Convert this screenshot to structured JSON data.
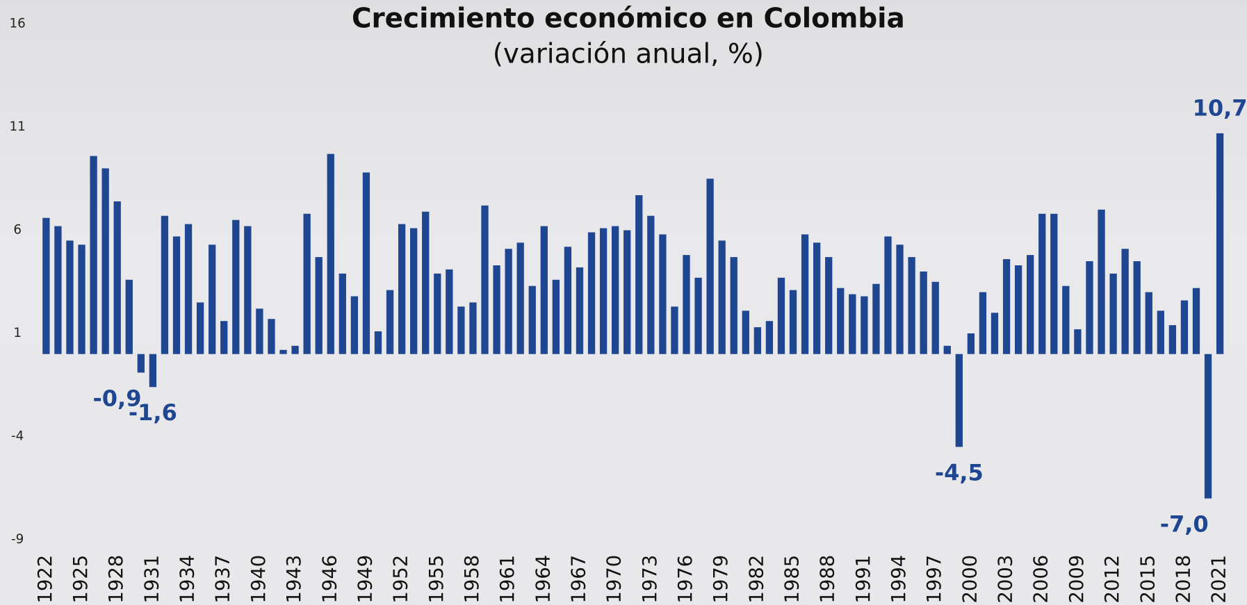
{
  "chart_data": {
    "type": "bar",
    "title": "Crecimiento económico en Colombia",
    "subtitle": "(variación anual, %)",
    "categories": [
      "1922",
      null,
      null,
      "1925",
      null,
      null,
      "1928",
      null,
      null,
      "1931",
      null,
      null,
      "1934",
      null,
      null,
      "1937",
      null,
      null,
      "1940",
      null,
      null,
      "1943",
      null,
      null,
      "1946",
      null,
      null,
      "1949",
      null,
      null,
      "1952",
      null,
      null,
      "1955",
      null,
      null,
      "1958",
      null,
      null,
      "1961",
      null,
      null,
      "1964",
      null,
      null,
      "1967",
      null,
      null,
      "1970",
      null,
      null,
      "1973",
      null,
      null,
      "1976",
      null,
      null,
      "1979",
      null,
      null,
      "1982",
      null,
      null,
      "1985",
      null,
      null,
      "1988",
      null,
      null,
      "1991",
      null,
      null,
      "1994",
      null,
      null,
      "1997",
      null,
      null,
      "2000",
      null,
      null,
      "2003",
      null,
      null,
      "2006",
      null,
      null,
      "2009",
      null,
      null,
      "2012",
      null,
      null,
      "2015",
      null,
      null,
      "2018",
      null,
      null,
      "2021"
    ],
    "values": [
      6.6,
      6.2,
      5.5,
      5.3,
      9.6,
      9.0,
      7.4,
      3.6,
      -0.9,
      -1.6,
      6.7,
      5.7,
      6.3,
      2.5,
      5.3,
      1.6,
      6.5,
      6.2,
      2.2,
      1.7,
      0.2,
      0.4,
      6.8,
      4.7,
      9.7,
      3.9,
      2.8,
      8.8,
      1.1,
      3.1,
      6.3,
      6.1,
      6.9,
      3.9,
      4.1,
      2.3,
      2.5,
      7.2,
      4.3,
      5.1,
      5.4,
      3.3,
      6.2,
      3.6,
      5.2,
      4.2,
      5.9,
      6.1,
      6.2,
      6.0,
      7.7,
      6.7,
      5.8,
      2.3,
      4.8,
      3.7,
      8.5,
      5.5,
      4.7,
      2.1,
      1.3,
      1.6,
      3.7,
      3.1,
      5.8,
      5.4,
      4.7,
      3.2,
      2.9,
      2.8,
      3.4,
      5.7,
      5.3,
      4.7,
      4.0,
      3.5,
      0.4,
      -4.5,
      1.0,
      3.0,
      2.0,
      4.6,
      4.3,
      4.8,
      6.8,
      6.8,
      3.3,
      1.2,
      4.5,
      7.0,
      3.9,
      5.1,
      4.5,
      3.0,
      2.1,
      1.4,
      2.6,
      3.2,
      -7.0,
      10.7
    ],
    "value_labels": [
      null,
      null,
      null,
      null,
      null,
      null,
      null,
      null,
      "-0,9",
      "-1,6",
      null,
      null,
      null,
      null,
      null,
      null,
      null,
      null,
      null,
      null,
      null,
      null,
      null,
      null,
      null,
      null,
      null,
      null,
      null,
      null,
      null,
      null,
      null,
      null,
      null,
      null,
      null,
      null,
      null,
      null,
      null,
      null,
      null,
      null,
      null,
      null,
      null,
      null,
      null,
      null,
      null,
      null,
      null,
      null,
      null,
      null,
      null,
      null,
      null,
      null,
      null,
      null,
      null,
      null,
      null,
      null,
      null,
      null,
      null,
      null,
      null,
      null,
      null,
      null,
      null,
      null,
      null,
      "-4,5",
      null,
      null,
      null,
      null,
      null,
      null,
      null,
      null,
      null,
      null,
      null,
      null,
      null,
      null,
      null,
      null,
      null,
      null,
      null,
      null,
      "-7,0",
      "10,7"
    ],
    "color": "#1f4690",
    "ylim": [
      -9,
      16
    ],
    "yticks": [
      -9,
      -4,
      1,
      6,
      11,
      16
    ],
    "grid": false
  }
}
